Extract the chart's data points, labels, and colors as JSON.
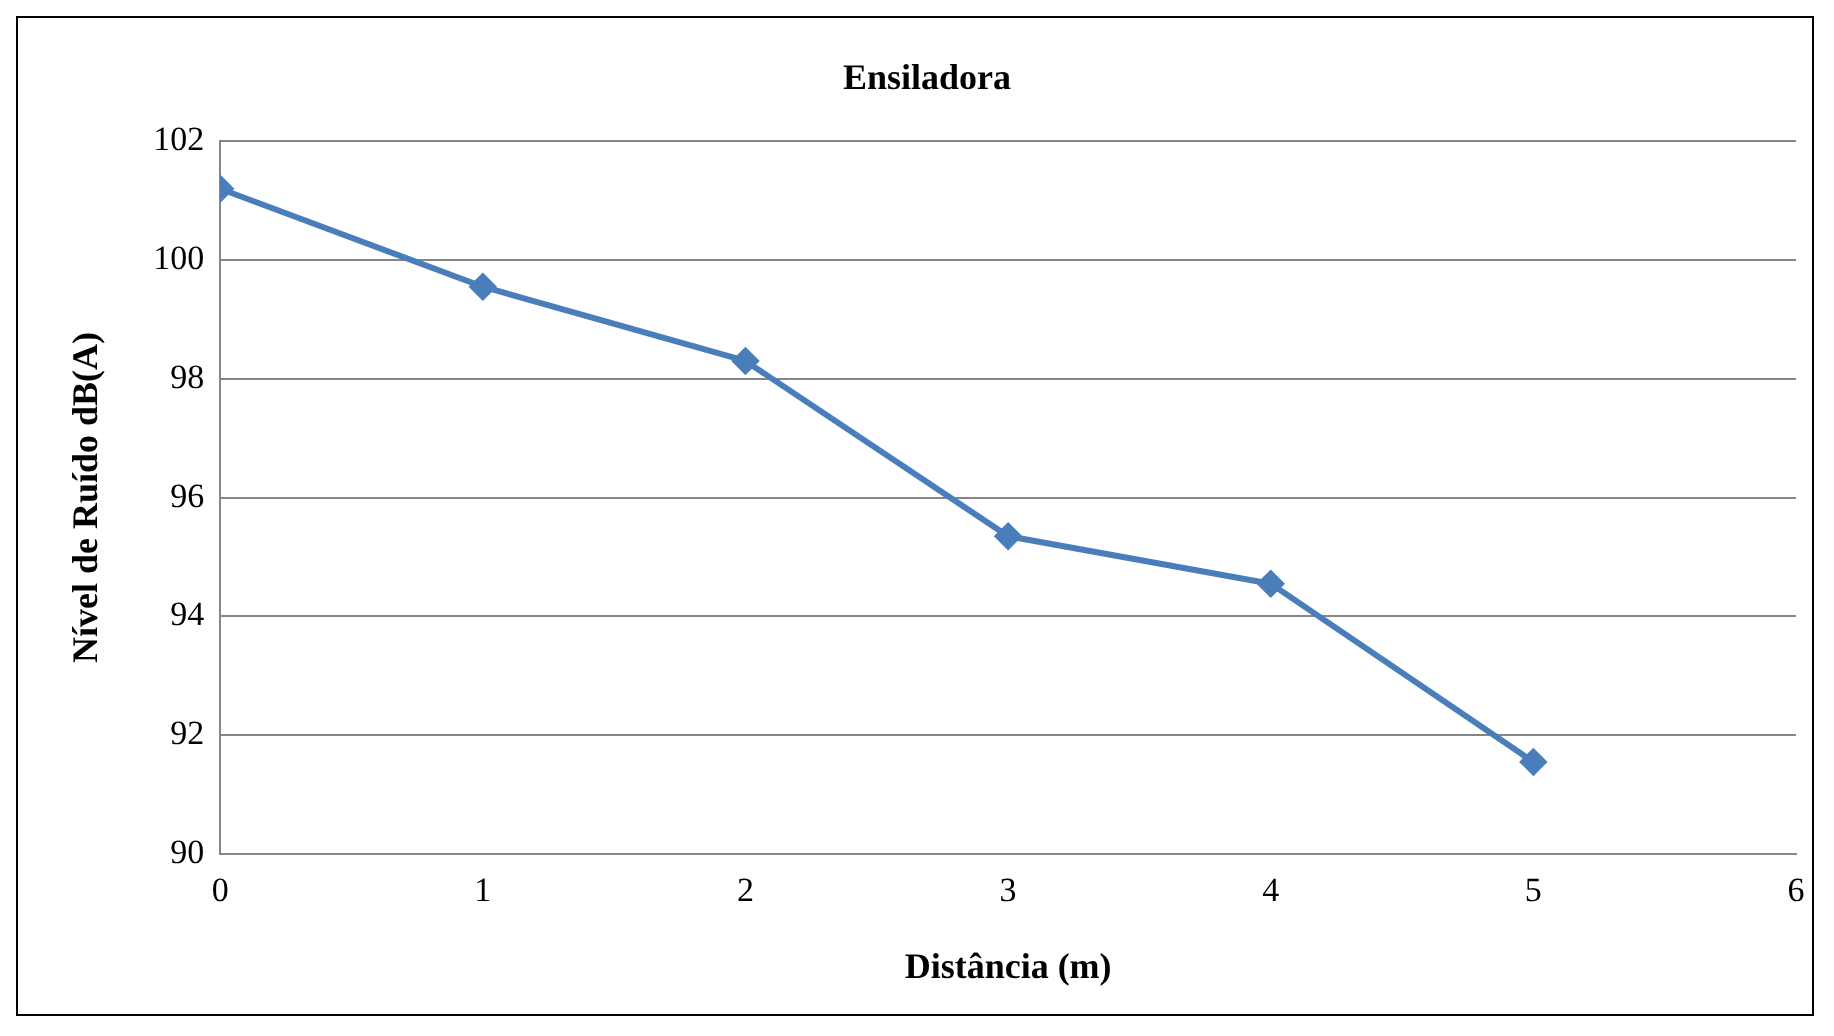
{
  "chart_data": {
    "type": "line",
    "title": "Ensiladora",
    "xlabel": "Distância (m)",
    "ylabel": "Nível de Ruído dB(A)",
    "x": [
      0,
      1,
      2,
      3,
      4,
      5
    ],
    "series": [
      {
        "color": "#4a7ebb",
        "values": [
          101.2,
          99.55,
          98.3,
          95.35,
          94.55,
          91.55
        ]
      }
    ],
    "xlim": [
      0,
      6
    ],
    "xticks": [
      0,
      1,
      2,
      3,
      4,
      5,
      6
    ],
    "ylim": [
      90,
      102
    ],
    "yticks": [
      90,
      92,
      94,
      96,
      98,
      100,
      102
    ],
    "grid": "y",
    "legend": false,
    "marker": "diamond",
    "line_style": "solid"
  }
}
